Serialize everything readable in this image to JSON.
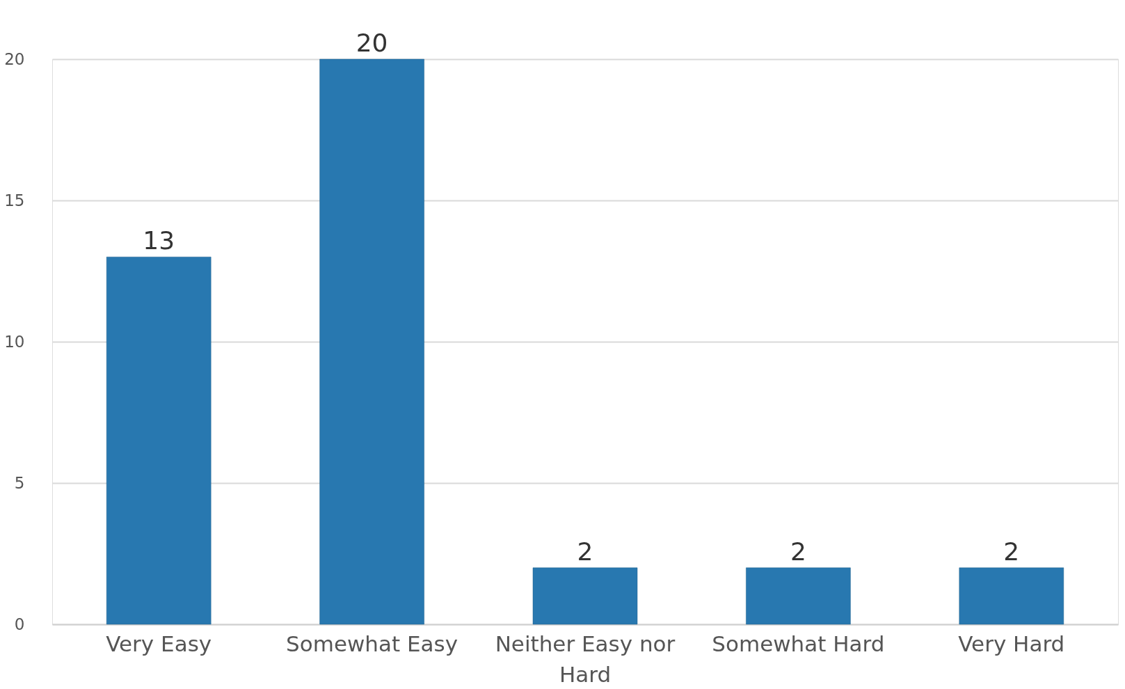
{
  "chart_data": {
    "type": "bar",
    "categories": [
      "Very Easy",
      "Somewhat Easy",
      "Neither Easy nor Hard",
      "Somewhat Hard",
      "Very Hard"
    ],
    "values": [
      13,
      20,
      2,
      2,
      2
    ],
    "color": "#2878b0",
    "ylim": [
      0,
      20
    ],
    "yticks": [
      0,
      5,
      10,
      15,
      20
    ],
    "grid": "y",
    "data_labels": true
  }
}
